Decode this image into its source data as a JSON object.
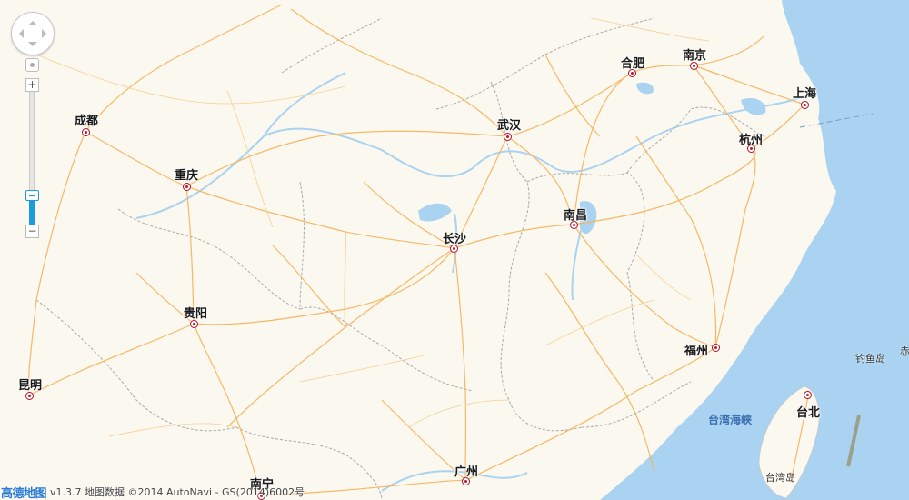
{
  "map": {
    "cities": [
      {
        "name": "成都"
      },
      {
        "name": "重庆"
      },
      {
        "name": "贵阳"
      },
      {
        "name": "昆明"
      },
      {
        "name": "南宁"
      },
      {
        "name": "广州"
      },
      {
        "name": "长沙"
      },
      {
        "name": "武汉"
      },
      {
        "name": "南昌"
      },
      {
        "name": "合肥"
      },
      {
        "name": "南京"
      },
      {
        "name": "上海"
      },
      {
        "name": "杭州"
      },
      {
        "name": "福州"
      },
      {
        "name": "台北"
      }
    ],
    "sea_label": "台湾海峡",
    "island_labels": [
      "钓鱼岛",
      "赤",
      "台湾岛"
    ],
    "colors": {
      "land": "#fbf8ef",
      "sea": "#a9d3f0",
      "highway": "#f6b560",
      "border": "#a8a8a8",
      "city_marker": "#c8102e"
    }
  },
  "controls": {
    "zoom_in": "+",
    "zoom_out": "−",
    "zoom_level_fraction": 0.78
  },
  "footer": {
    "logo": "高德地图",
    "copyright": "v1.3.7 地图数据 ©2014 AutoNavi - GS(2014)6002号"
  }
}
